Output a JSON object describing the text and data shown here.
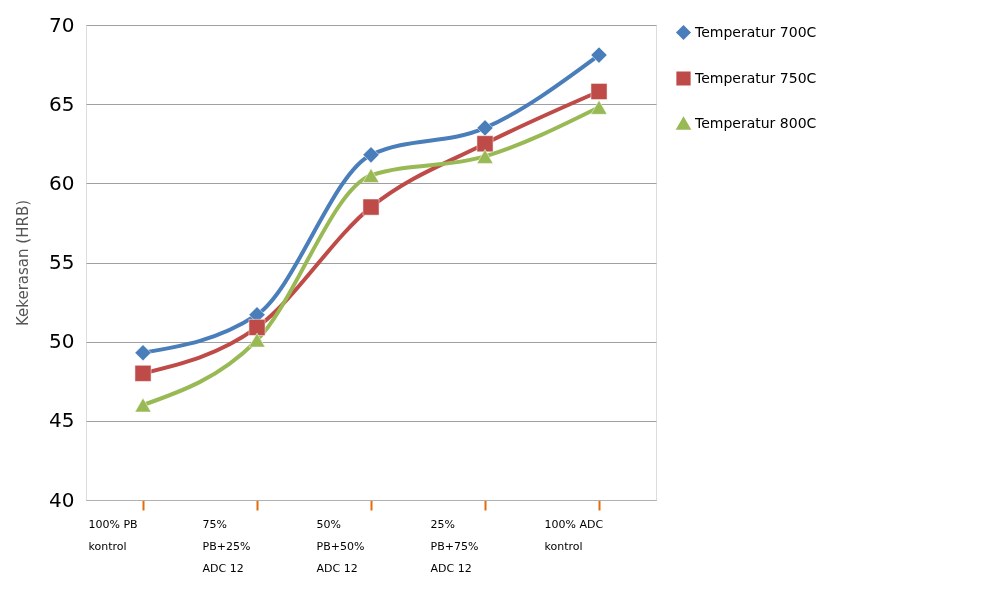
{
  "chart_data": {
    "type": "line",
    "ylabel": "Kekerasan (HRB)",
    "categories": [
      "100% PB\nkontrol",
      "75%\nPB+25%\nADC 12",
      "50%\nPB+50%\nADC 12",
      "25%\nPB+75%\nADC 12",
      "100% ADC\nkontrol"
    ],
    "series": [
      {
        "name": "Temperatur 700C",
        "color": "#4a7ebb",
        "marker": "diamond",
        "values": [
          49.3,
          51.7,
          61.8,
          63.5,
          68.1
        ]
      },
      {
        "name": "Temperatur 750C",
        "color": "#be4b48",
        "marker": "square",
        "values": [
          48.0,
          50.9,
          58.5,
          62.5,
          65.8
        ]
      },
      {
        "name": "Temperatur 800C",
        "color": "#98b954",
        "marker": "triangle",
        "values": [
          46.0,
          50.1,
          60.5,
          61.7,
          64.8
        ]
      }
    ],
    "ylim": [
      40,
      70
    ],
    "yticks": [
      40,
      45,
      50,
      55,
      60,
      65,
      70
    ],
    "grid": "y",
    "legend": "right",
    "line_style": "solid"
  }
}
